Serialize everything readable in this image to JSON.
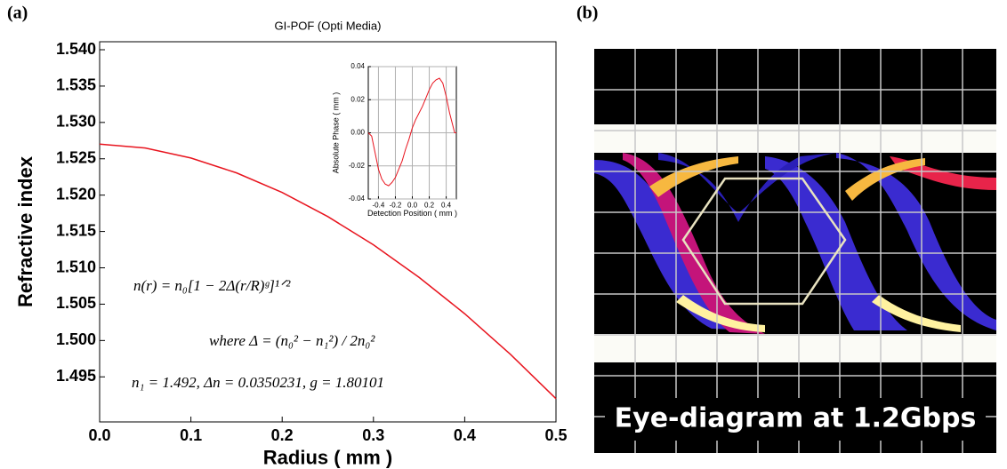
{
  "figure": {
    "panel_a_label": "(a)",
    "panel_b_label": "(b)",
    "eye_caption": "Eye-diagram at 1.2Gbps"
  },
  "chart_data": [
    {
      "type": "line",
      "title": "GI-POF (Opti Media)",
      "x_label": "Radius ( mm )",
      "y_label": "Refractive index",
      "x": [
        0,
        0.05,
        0.1,
        0.15,
        0.2,
        0.25,
        0.3,
        0.35,
        0.4,
        0.45,
        0.5
      ],
      "series": [
        {
          "color": "#e8141e",
          "values": [
            1.52702,
            1.52648,
            1.52511,
            1.52306,
            1.52036,
            1.51705,
            1.51316,
            1.50869,
            1.50368,
            1.49811,
            1.492
          ]
        }
      ],
      "xlim": [
        0,
        0.5
      ],
      "ylim": [
        1.4888,
        1.5411
      ],
      "xticks": [
        {
          "value": 0,
          "label": "0.0"
        },
        0.1,
        0.2,
        0.3,
        0.4,
        0.5
      ],
      "yticks": [
        {
          "value": 1.54,
          "label": "1.540"
        },
        1.535,
        {
          "value": 1.53,
          "label": "1.530"
        },
        1.525,
        {
          "value": 1.52,
          "label": "1.520"
        },
        1.515,
        {
          "value": 1.51,
          "label": "1.510"
        },
        1.505,
        {
          "value": 1.5,
          "label": "1.500"
        },
        1.495
      ],
      "grid": false,
      "annotations": [
        "n(r) = n₀[1 − 2Δ(r/R)ᵍ]¹ᐟ²",
        "where Δ = (n₀² − n₁²) / 2n₀²",
        "n₁ = 1.492,  Δn = 0.0350231,  g = 1.80101"
      ]
    },
    {
      "type": "line",
      "x_label": "Detection Position ( mm )",
      "y_label": "Absolute Phase ( mm )",
      "x": [
        -0.52,
        -0.48,
        -0.44,
        -0.4,
        -0.36,
        -0.32,
        -0.28,
        -0.24,
        -0.2,
        -0.16,
        -0.12,
        -0.08,
        -0.04,
        0,
        0.04,
        0.08,
        0.12,
        0.16,
        0.2,
        0.24,
        0.28,
        0.32,
        0.36,
        0.4,
        0.44,
        0.48,
        0.5,
        0.52
      ],
      "series": [
        {
          "color": "#e8141e",
          "values": [
            0,
            -0.002,
            -0.012,
            -0.022,
            -0.028,
            -0.031,
            -0.032,
            -0.03,
            -0.027,
            -0.022,
            -0.017,
            -0.01,
            -0.004,
            0.003,
            0.008,
            0.012,
            0.016,
            0.021,
            0.026,
            0.03,
            0.032,
            0.033,
            0.03,
            0.022,
            0.012,
            0.004,
            0,
            0
          ]
        }
      ],
      "xlim": [
        -0.52,
        0.52
      ],
      "ylim": [
        -0.04,
        0.04
      ],
      "xticks": [
        -0.4,
        -0.2,
        {
          "value": 0,
          "label": "0.0"
        },
        0.2,
        0.4
      ],
      "yticks": [
        0.04,
        0.02,
        {
          "value": 0,
          "label": "0.00"
        },
        -0.02,
        -0.04
      ],
      "grid": true
    }
  ]
}
